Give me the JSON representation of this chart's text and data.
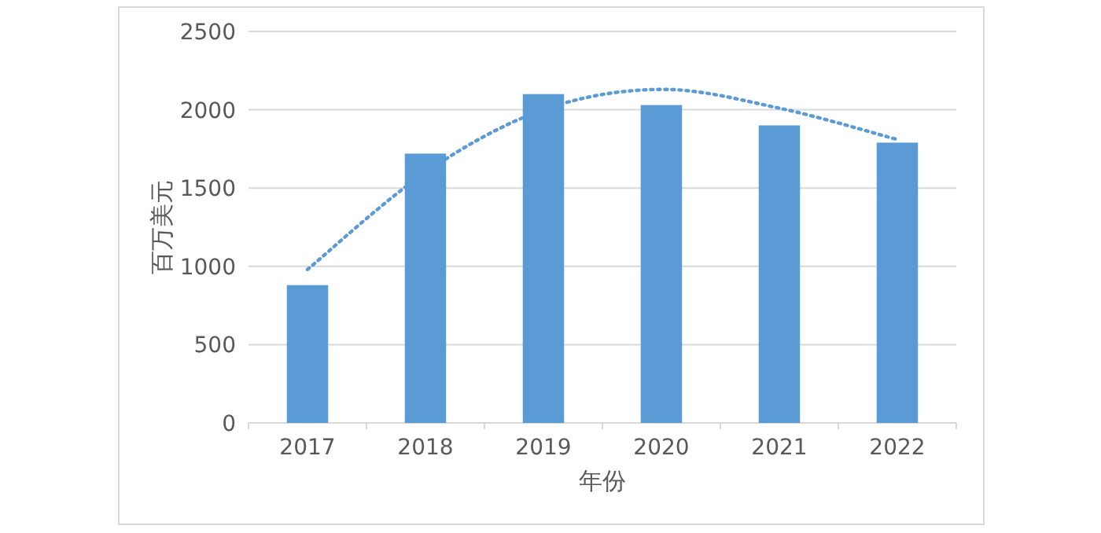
{
  "chart_data": {
    "type": "bar",
    "xlabel": "年份",
    "ylabel": "百万美元",
    "categories": [
      "2017",
      "2018",
      "2019",
      "2020",
      "2021",
      "2022"
    ],
    "series": [
      {
        "color": "#5b9bd5",
        "values": [
          880,
          1720,
          2100,
          2030,
          1900,
          1790
        ]
      },
      {
        "type": "line",
        "color": "#5b9bd5",
        "line_style": "dotted",
        "values": [
          980,
          1600,
          2000,
          2130,
          2010,
          1810
        ]
      }
    ],
    "ylim": [
      0,
      2500
    ],
    "yticks": [
      0,
      500,
      1000,
      1500,
      2000,
      2500
    ],
    "grid": "y"
  }
}
